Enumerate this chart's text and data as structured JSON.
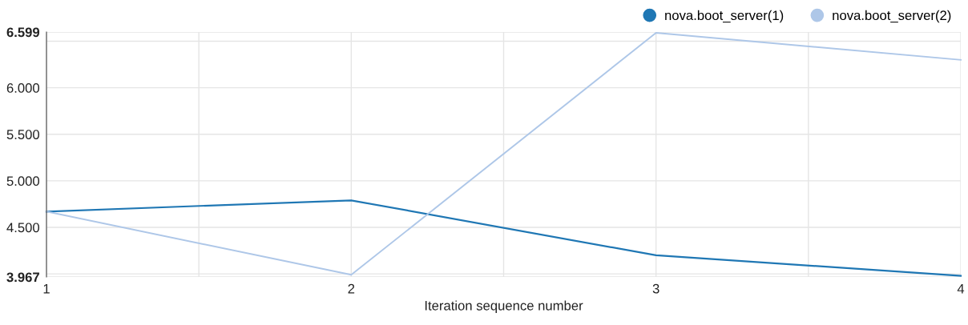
{
  "chart_data": {
    "type": "line",
    "xlabel": "Iteration sequence number",
    "x": [
      1,
      2,
      3,
      4
    ],
    "series": [
      {
        "name": "nova.boot_server(1)",
        "color": "#1f77b4",
        "values": [
          4.67,
          4.79,
          4.2,
          3.98
        ]
      },
      {
        "name": "nova.boot_server(2)",
        "color": "#aec7e8",
        "values": [
          4.67,
          3.99,
          6.59,
          6.3
        ]
      }
    ],
    "xlim": [
      1,
      4
    ],
    "xticks": [
      1,
      {
        "value": 1.5,
        "label": null
      },
      2,
      {
        "value": 2.5,
        "label": null
      },
      3,
      {
        "value": 3.5,
        "label": null
      },
      4
    ],
    "ylim": [
      3.967,
      6.599
    ],
    "yticks": [
      {
        "value": 3.967,
        "label": "3.967"
      },
      {
        "value": 4.0,
        "label": null
      },
      {
        "value": 4.5,
        "label": "4.500"
      },
      {
        "value": 5.0,
        "label": "5.000"
      },
      {
        "value": 5.5,
        "label": "5.500"
      },
      {
        "value": 6.0,
        "label": "6.000"
      },
      {
        "value": 6.5,
        "label": null
      },
      {
        "value": 6.599,
        "label": "6.599"
      }
    ],
    "grid": true,
    "legend": "top right",
    "line_style": "solid"
  }
}
